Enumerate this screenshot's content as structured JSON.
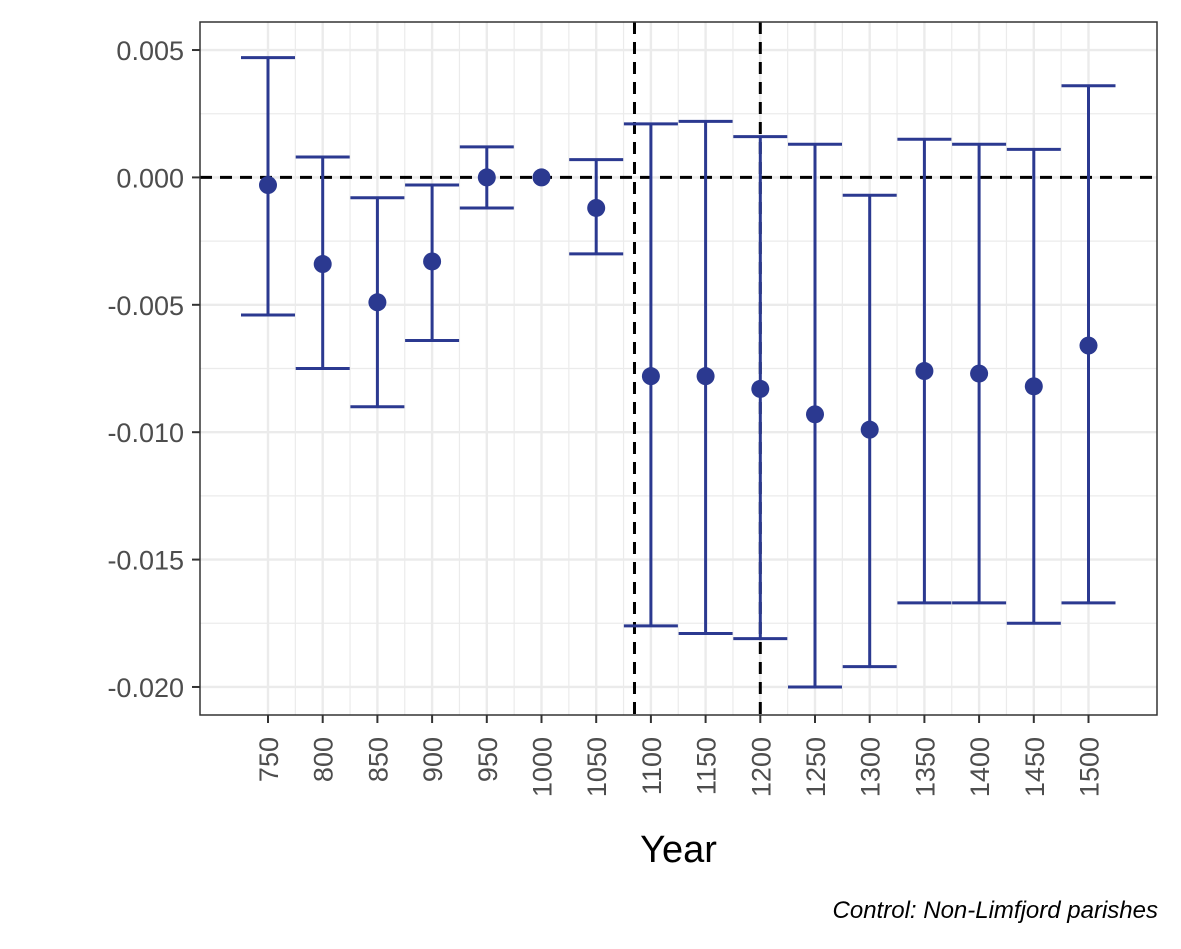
{
  "chart_data": {
    "type": "scatter",
    "title": "",
    "xlabel": "Year",
    "ylabel": "",
    "caption": "Control: Non-Limfjord parishes",
    "categories": [
      "750",
      "800",
      "850",
      "900",
      "950",
      "1000",
      "1050",
      "1100",
      "1150",
      "1200",
      "1250",
      "1300",
      "1350",
      "1400",
      "1450",
      "1500"
    ],
    "y_ticks": [
      "0.005",
      "0.000",
      "-0.005",
      "-0.010",
      "-0.015",
      "-0.020"
    ],
    "y_tick_values": [
      0.005,
      0.0,
      -0.005,
      -0.01,
      -0.015,
      -0.02
    ],
    "ylim": [
      -0.0211,
      0.0061
    ],
    "series": [
      {
        "estimate": [
          -0.0003,
          -0.0034,
          -0.0049,
          -0.0033,
          0.0,
          0.0,
          -0.0012,
          -0.0078,
          -0.0078,
          -0.0083,
          -0.0093,
          -0.0099,
          -0.0076,
          -0.0077,
          -0.0082,
          -0.0066
        ],
        "lower": [
          -0.0054,
          -0.0075,
          -0.009,
          -0.0064,
          -0.0012,
          0.0,
          -0.003,
          -0.0176,
          -0.0179,
          -0.0181,
          -0.02,
          -0.0192,
          -0.0167,
          -0.0167,
          -0.0175,
          -0.0167
        ],
        "upper": [
          0.0047,
          0.0008,
          -0.0008,
          -0.0003,
          0.0012,
          0.0,
          0.0007,
          0.0021,
          0.0022,
          0.0016,
          0.0013,
          -0.0007,
          0.0015,
          0.0013,
          0.0011,
          0.0036
        ]
      }
    ],
    "reference_lines": {
      "horizontal_y": 0.0,
      "vertical_x": [
        1085,
        1200
      ]
    },
    "grid": true,
    "legend": "none",
    "colors": {
      "series": "#2b3990",
      "reference": "#000000",
      "grid": "#ebebeb",
      "panel_border": "#333333",
      "tick_text": "#4d4d4d"
    }
  }
}
